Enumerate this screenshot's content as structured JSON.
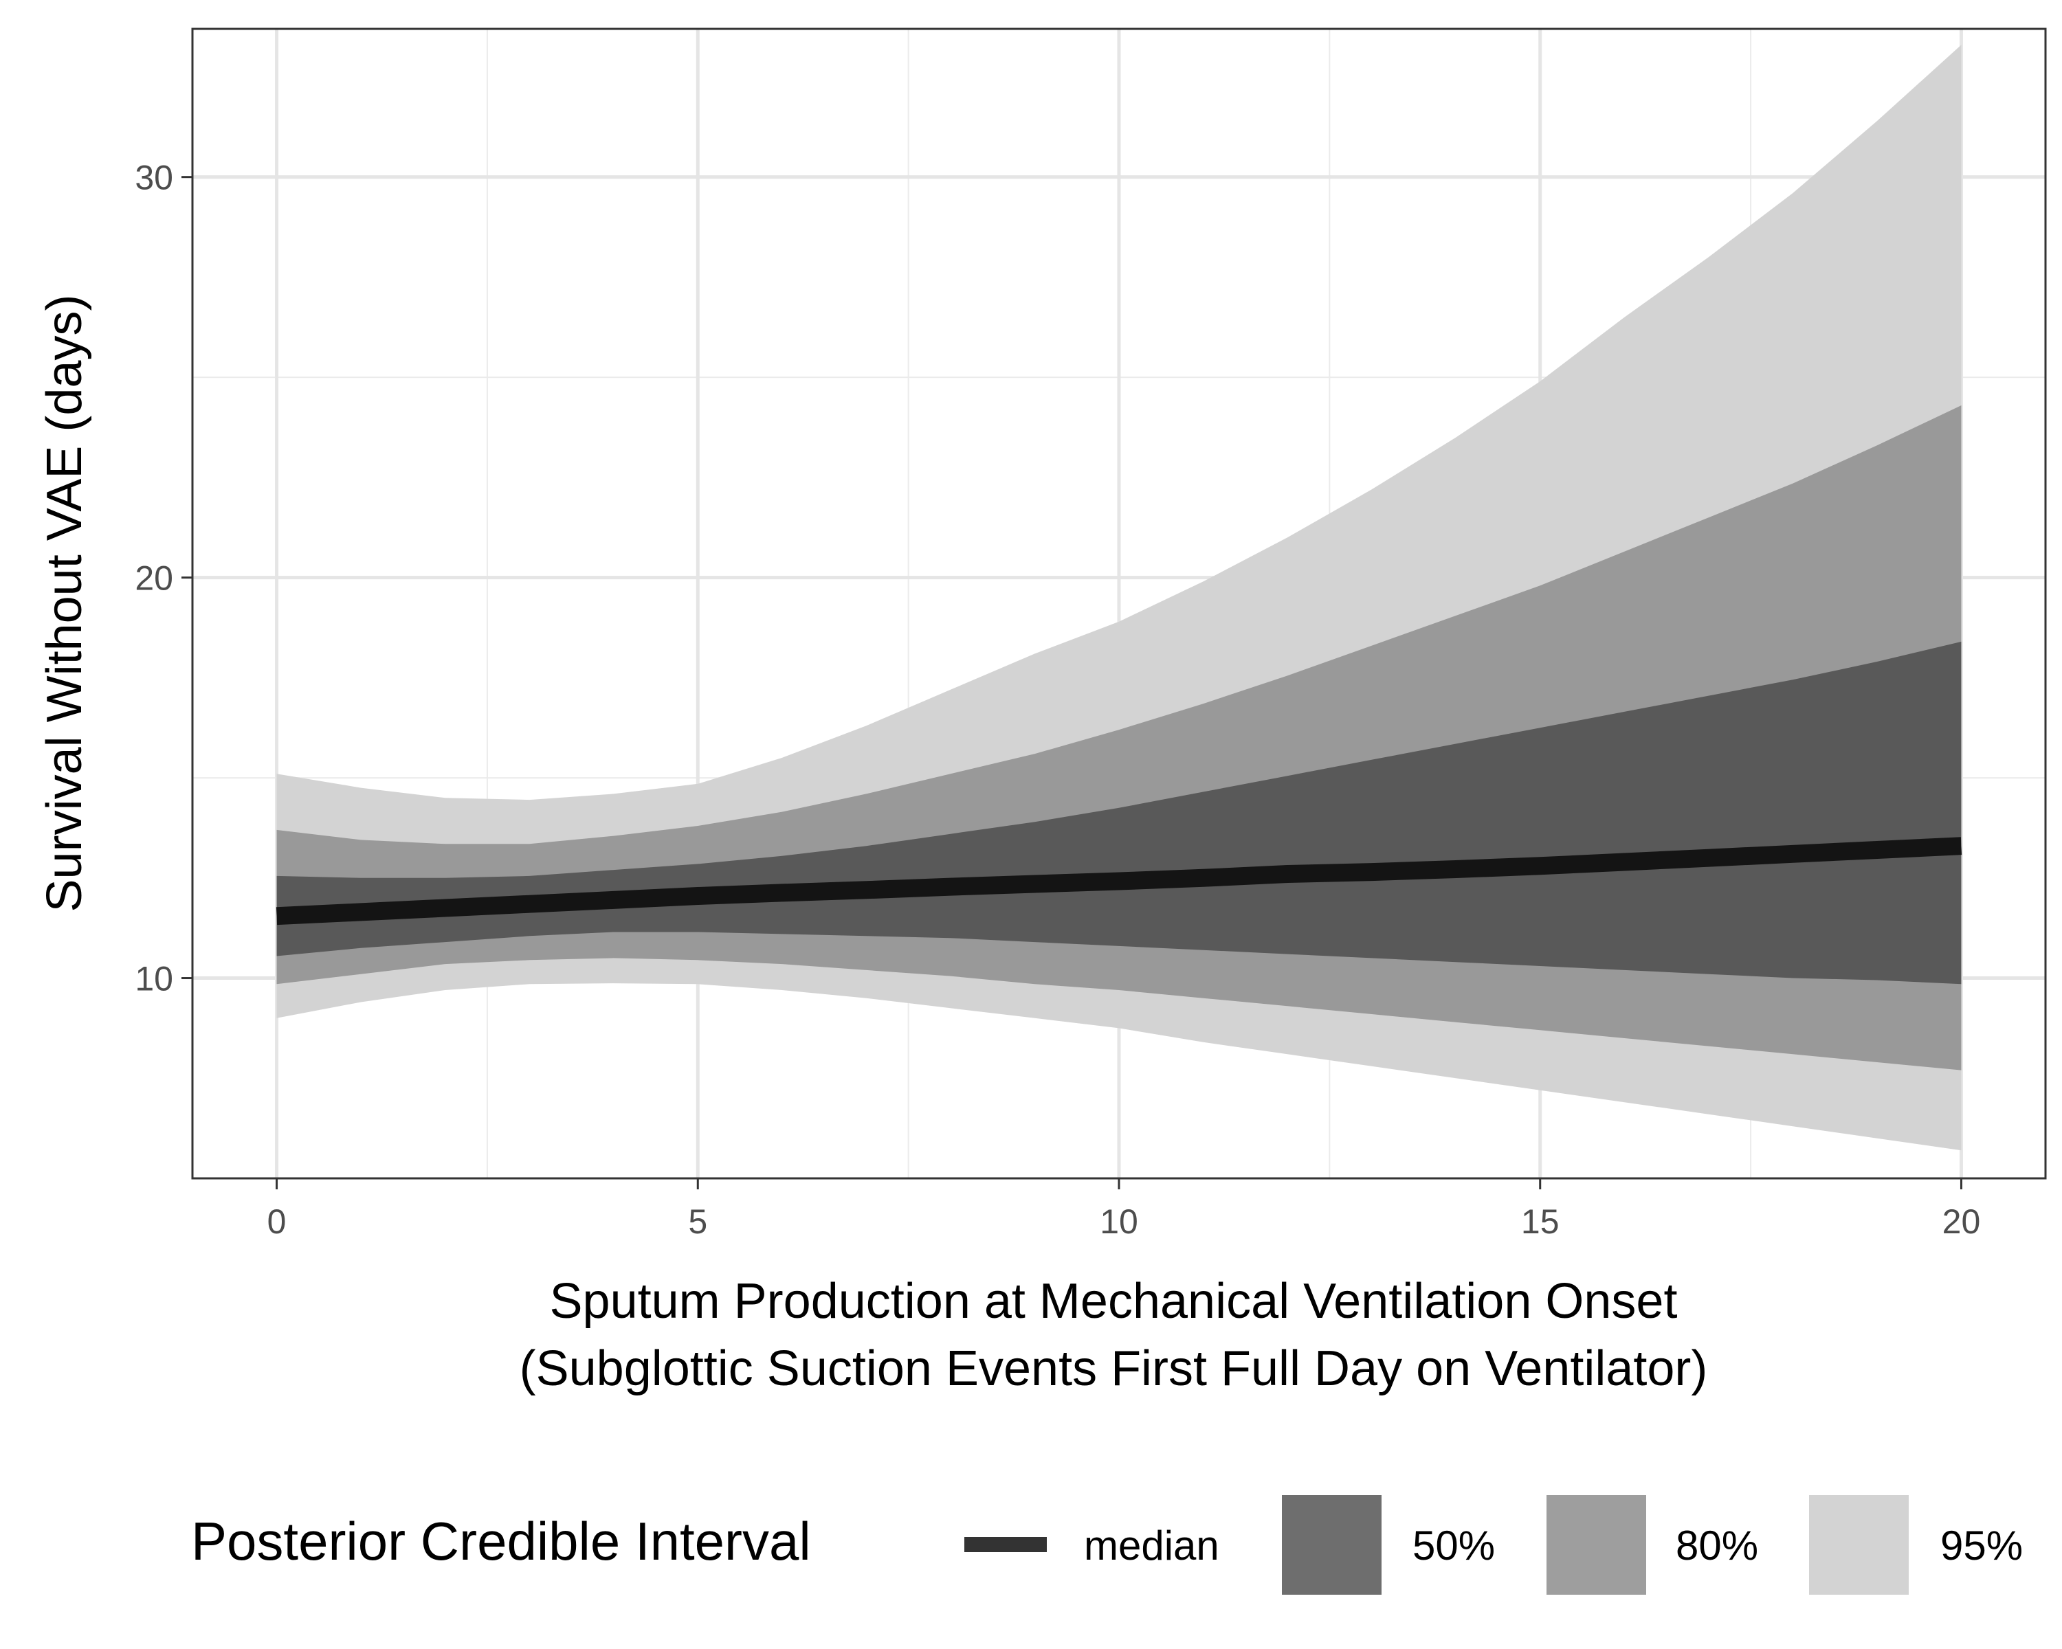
{
  "chart_data": {
    "type": "area",
    "title": "",
    "xlabel": [
      "Sputum Production at Mechanical Ventilation Onset",
      "(Subglottic Suction Events First Full Day on Ventilator)"
    ],
    "ylabel": "Survival Without VAE (days)",
    "xlim": [
      -1,
      21
    ],
    "ylim": [
      5,
      33.7
    ],
    "x_ticks": [
      0,
      5,
      10,
      15,
      20
    ],
    "x_tick_labels": [
      "0",
      "5",
      "10",
      "15",
      "20"
    ],
    "y_ticks": [
      10,
      20,
      30
    ],
    "y_tick_labels": [
      "10",
      "20",
      "30"
    ],
    "grid": true,
    "legend": {
      "title": "Posterior Credible Interval",
      "position": "bottom",
      "entries": [
        "median",
        "50%",
        "80%",
        "95%"
      ]
    },
    "x": [
      0,
      1,
      2,
      3,
      4,
      5,
      6,
      7,
      8,
      9,
      10,
      11,
      12,
      13,
      14,
      15,
      16,
      17,
      18,
      19,
      20
    ],
    "series": [
      {
        "name": "95%",
        "color": "#d3d3d3",
        "lower": [
          9.0,
          9.4,
          9.7,
          9.85,
          9.87,
          9.85,
          9.7,
          9.5,
          9.25,
          9.0,
          8.75,
          8.4,
          8.1,
          7.8,
          7.5,
          7.2,
          6.9,
          6.6,
          6.3,
          6.0,
          5.7
        ],
        "upper": [
          15.1,
          14.75,
          14.5,
          14.45,
          14.6,
          14.85,
          15.5,
          16.3,
          17.2,
          18.1,
          18.9,
          19.9,
          21.0,
          22.2,
          23.5,
          24.9,
          26.5,
          28.0,
          29.6,
          31.4,
          33.3
        ]
      },
      {
        "name": "80%",
        "color": "#999999",
        "lower": [
          9.85,
          10.1,
          10.35,
          10.45,
          10.5,
          10.45,
          10.35,
          10.2,
          10.05,
          9.85,
          9.7,
          9.5,
          9.3,
          9.1,
          8.9,
          8.7,
          8.5,
          8.3,
          8.1,
          7.9,
          7.7
        ],
        "upper": [
          13.7,
          13.45,
          13.35,
          13.35,
          13.55,
          13.8,
          14.15,
          14.6,
          15.1,
          15.6,
          16.2,
          16.85,
          17.55,
          18.3,
          19.05,
          19.8,
          20.65,
          21.5,
          22.35,
          23.3,
          24.3
        ]
      },
      {
        "name": "50%",
        "color": "#595959",
        "lower": [
          10.55,
          10.75,
          10.9,
          11.05,
          11.15,
          11.15,
          11.1,
          11.05,
          11.0,
          10.9,
          10.8,
          10.7,
          10.6,
          10.5,
          10.4,
          10.3,
          10.2,
          10.1,
          10.0,
          9.95,
          9.85
        ],
        "upper": [
          12.55,
          12.5,
          12.5,
          12.55,
          12.7,
          12.85,
          13.05,
          13.3,
          13.6,
          13.9,
          14.25,
          14.65,
          15.05,
          15.45,
          15.85,
          16.25,
          16.65,
          17.05,
          17.45,
          17.9,
          18.4
        ]
      },
      {
        "name": "median",
        "color": "#141414",
        "values": [
          11.55,
          11.65,
          11.75,
          11.85,
          11.95,
          12.05,
          12.13,
          12.2,
          12.28,
          12.35,
          12.42,
          12.5,
          12.6,
          12.65,
          12.72,
          12.8,
          12.9,
          13.0,
          13.1,
          13.2,
          13.3
        ]
      }
    ]
  }
}
